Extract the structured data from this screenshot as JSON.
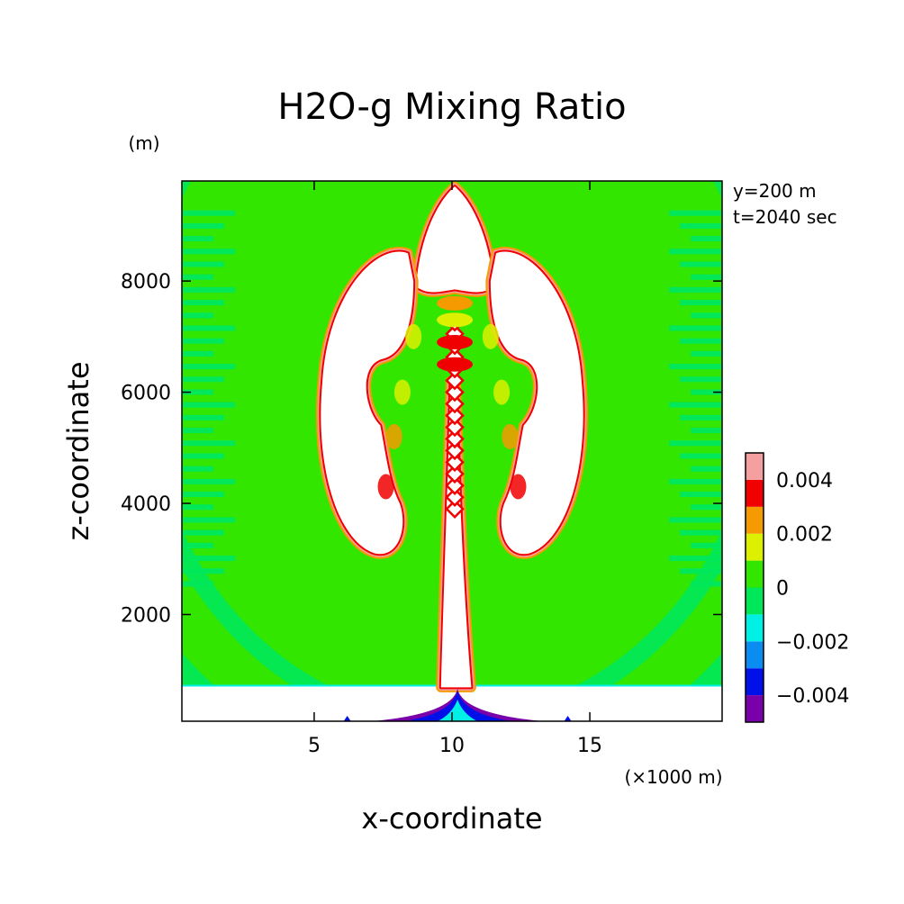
{
  "chart_data": {
    "type": "heatmap",
    "title": "H2O-g Mixing Ratio",
    "xlabel": "x-coordinate",
    "ylabel": "z-coordinate",
    "x_unit": "(×1000 m)",
    "y_unit": "(m)",
    "annotations": [
      "y=200 m",
      "t=2040 sec"
    ],
    "xlim": [
      0.2,
      19.8
    ],
    "ylim": [
      80,
      9800
    ],
    "x_ticks": [
      5,
      10,
      15
    ],
    "y_ticks": [
      2000,
      4000,
      6000,
      8000
    ],
    "colorbar": {
      "levels": [
        -0.005,
        -0.004,
        -0.003,
        -0.002,
        -0.001,
        0,
        0.001,
        0.002,
        0.003,
        0.004,
        0.005
      ],
      "colors": [
        "#7a00aa",
        "#0010e8",
        "#0a8cf0",
        "#00f0e6",
        "#00e85a",
        "#32e600",
        "#dcf000",
        "#f59a00",
        "#f00000",
        "#f5a0a0"
      ],
      "tick_values": [
        0.004,
        0.002,
        0,
        -0.002,
        -0.004
      ],
      "tick_labels": [
        "0.004",
        "0.002",
        "0",
        "−0.002",
        "−0.004"
      ]
    },
    "fill_colors": {
      "background": "#32e600",
      "light_band": "#00e85a",
      "moist": "#ffffff",
      "rim_red": "#f00000",
      "rim_orange": "#f59a00",
      "rim_yellow": "#dcf000",
      "rim_pink": "#f5a0a0",
      "dry_cyan": "#00f0e6",
      "dry_blue": "#0010e8",
      "dry_purple": "#7a00aa"
    }
  }
}
